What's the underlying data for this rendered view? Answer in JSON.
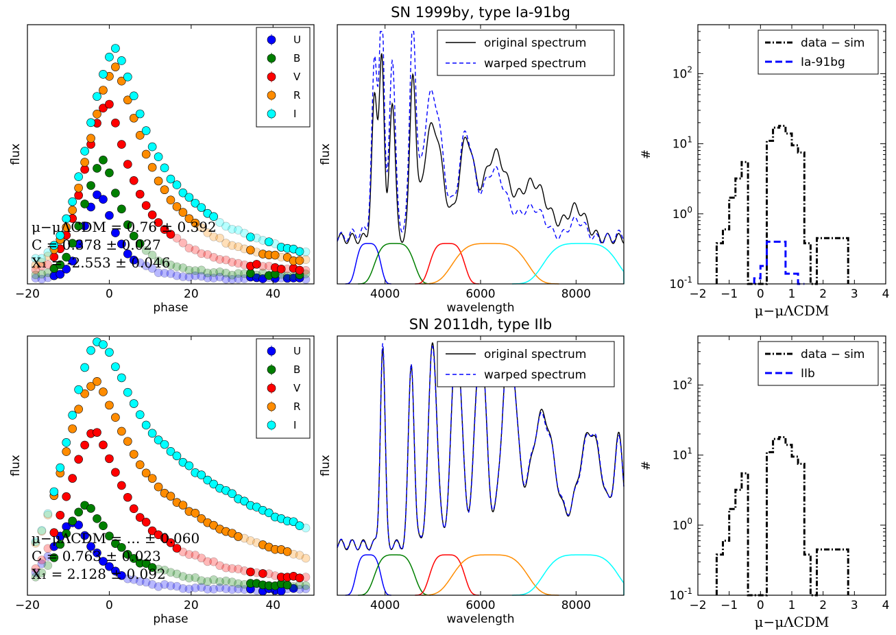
{
  "figure": {
    "rows": [
      {
        "title": "SN 1999by, type Ia-91bg",
        "lightcurve": {
          "type": "scatter",
          "xlabel": "phase",
          "ylabel": "flux",
          "xlim": [
            -20,
            50
          ],
          "xticks": [
            "-20",
            "0",
            "20",
            "40"
          ],
          "legend": [
            "U",
            "B",
            "V",
            "R",
            "I"
          ],
          "colors": [
            "#0000ff",
            "#007f00",
            "#ff0000",
            "#ff8c00",
            "#00ffff"
          ],
          "annotation": [
            "μ−μΛCDM = 0.76 ± 0.392",
            "C = 0.378 ± 0.027",
            "X₁ = -2.553 ± 0.046"
          ],
          "series": [
            {
              "name": "U",
              "peak": 0.34,
              "center": -2,
              "width": 4,
              "decay": 6
            },
            {
              "name": "B",
              "peak": 0.46,
              "center": -1,
              "width": 5,
              "decay": 7
            },
            {
              "name": "V",
              "peak": 0.66,
              "center": 0,
              "width": 6,
              "decay": 11
            },
            {
              "name": "R",
              "peak": 0.79,
              "center": 2,
              "width": 7,
              "decay": 14
            },
            {
              "name": "I",
              "peak": 0.85,
              "center": 2,
              "width": 7,
              "decay": 17
            }
          ]
        },
        "spectrum": {
          "type": "line",
          "xlabel": "wavelength",
          "ylabel": "flux",
          "xlim": [
            3000,
            9000
          ],
          "xticks": [
            "4000",
            "6000",
            "8000"
          ],
          "legend": [
            "original spectrum",
            "warped spectrum"
          ],
          "filters": [
            {
              "center": 3650,
              "width": 300,
              "color": "#0000ff",
              "height": 0.16
            },
            {
              "center": 4200,
              "width": 480,
              "color": "#007f00",
              "height": 0.16
            },
            {
              "center": 5300,
              "width": 420,
              "color": "#ff0000",
              "height": 0.16
            },
            {
              "center": 6200,
              "width": 900,
              "color": "#ff8c00",
              "height": 0.16
            },
            {
              "center": 8100,
              "width": 900,
              "color": "#00ffff",
              "height": 0.16
            }
          ]
        },
        "histogram": {
          "type": "bar",
          "xlabel": "μ−μΛCDM",
          "ylabel": "#",
          "xlim": [
            -2,
            4
          ],
          "ylim": [
            0.1,
            500
          ],
          "yscale": "log",
          "xticks": [
            "−2",
            "−1",
            "0",
            "1",
            "2",
            "3",
            "4"
          ],
          "yticks": [
            [
              "10",
              "2"
            ],
            [
              "10",
              "1"
            ],
            [
              "10",
              "0"
            ],
            [
              "10",
              "-1"
            ]
          ],
          "legend": [
            "data − sim",
            "Ia-91bg"
          ],
          "data_minus_sim": {
            "edges": [
              -1.4,
              -1.2,
              -1.0,
              -0.8,
              -0.6,
              -0.4,
              -0.2,
              0.0,
              0.2,
              0.4,
              0.6,
              0.8,
              1.0,
              1.2,
              1.4,
              1.6,
              1.8,
              2.0,
              2.2,
              2.4,
              2.6,
              2.8
            ],
            "counts": [
              0.38,
              0.6,
              1.7,
              3.2,
              5.5,
              0.1,
              0.1,
              0.1,
              11,
              17,
              18,
              14,
              9.5,
              7.5,
              0.38,
              0.1,
              0.45,
              0.45,
              0.45,
              0.45,
              0.45
            ]
          },
          "type_sim": {
            "edges": [
              -0.2,
              0.0,
              0.2,
              0.4,
              0.6,
              0.8,
              1.0,
              1.2,
              1.4
            ],
            "counts": [
              0.12,
              0.18,
              0.4,
              0.4,
              0.4,
              0.14,
              0.14,
              0.1
            ]
          }
        }
      },
      {
        "title": "SN 2011dh, type IIb",
        "lightcurve": {
          "type": "scatter",
          "xlabel": "phase",
          "ylabel": "flux",
          "xlim": [
            -20,
            50
          ],
          "xticks": [
            "-20",
            "0",
            "20",
            "40"
          ],
          "legend": [
            "U",
            "B",
            "V",
            "R",
            "I"
          ],
          "colors": [
            "#0000ff",
            "#007f00",
            "#ff0000",
            "#ff8c00",
            "#00ffff"
          ],
          "annotation": [
            "μ−μΛCDM = … ± 0.060",
            "C = 0.763 ± 0.023",
            "X₁ = 2.128 ± 0.092"
          ],
          "series": [
            {
              "name": "U",
              "peak": 0.27,
              "center": -8,
              "width": 6,
              "decay": 8
            },
            {
              "name": "B",
              "peak": 0.32,
              "center": -5,
              "width": 6,
              "decay": 12
            },
            {
              "name": "V",
              "peak": 0.6,
              "center": -3,
              "width": 7,
              "decay": 15
            },
            {
              "name": "R",
              "peak": 0.78,
              "center": -3,
              "width": 8,
              "decay": 25
            },
            {
              "name": "I",
              "peak": 0.93,
              "center": -2,
              "width": 8,
              "decay": 35
            }
          ]
        },
        "spectrum": {
          "type": "line",
          "xlabel": "wavelength",
          "ylabel": "flux",
          "xlim": [
            3000,
            9000
          ],
          "xticks": [
            "4000",
            "6000",
            "8000"
          ],
          "legend": [
            "original spectrum",
            "warped spectrum"
          ],
          "filters": [
            {
              "center": 3650,
              "width": 300,
              "color": "#0000ff",
              "height": 0.16
            },
            {
              "center": 4200,
              "width": 480,
              "color": "#007f00",
              "height": 0.16
            },
            {
              "center": 5300,
              "width": 420,
              "color": "#ff0000",
              "height": 0.16
            },
            {
              "center": 6200,
              "width": 900,
              "color": "#ff8c00",
              "height": 0.16
            },
            {
              "center": 8100,
              "width": 900,
              "color": "#00ffff",
              "height": 0.16
            }
          ]
        },
        "histogram": {
          "type": "bar",
          "xlabel": "μ−μΛCDM",
          "ylabel": "#",
          "xlim": [
            -2,
            4
          ],
          "ylim": [
            0.1,
            500
          ],
          "yscale": "log",
          "xticks": [
            "−2",
            "−1",
            "0",
            "1",
            "2",
            "3",
            "4"
          ],
          "yticks": [
            [
              "10",
              "2"
            ],
            [
              "10",
              "1"
            ],
            [
              "10",
              "0"
            ],
            [
              "10",
              "-1"
            ]
          ],
          "legend": [
            "data − sim",
            "IIb"
          ],
          "data_minus_sim": {
            "edges": [
              -1.4,
              -1.2,
              -1.0,
              -0.8,
              -0.6,
              -0.4,
              -0.2,
              0.0,
              0.2,
              0.4,
              0.6,
              0.8,
              1.0,
              1.2,
              1.4,
              1.6,
              1.8,
              2.0,
              2.2,
              2.4,
              2.6,
              2.8
            ],
            "counts": [
              0.38,
              0.6,
              1.7,
              3.2,
              5.5,
              0.1,
              0.1,
              0.1,
              11,
              17,
              18,
              14,
              9.5,
              7.5,
              0.38,
              0.1,
              0.45,
              0.45,
              0.45,
              0.45,
              0.45
            ]
          },
          "type_sim": {
            "edges": [],
            "counts": []
          }
        }
      }
    ]
  },
  "chart_data": [
    {
      "type": "scatter",
      "title": "",
      "xlabel": "phase",
      "ylabel": "flux",
      "xlim": [
        -20,
        50
      ],
      "legend": [
        "U",
        "B",
        "V",
        "R",
        "I"
      ]
    },
    {
      "type": "line",
      "title": "SN 1999by, type Ia-91bg",
      "xlabel": "wavelength",
      "ylabel": "flux",
      "xlim": [
        3000,
        9000
      ],
      "legend": [
        "original spectrum",
        "warped spectrum"
      ]
    },
    {
      "type": "bar",
      "title": "",
      "xlabel": "μ−μΛCDM",
      "ylabel": "#",
      "xlim": [
        -2,
        4
      ],
      "ylim": [
        0.1,
        500
      ],
      "yscale": "log",
      "legend": [
        "data − sim",
        "Ia-91bg"
      ]
    },
    {
      "type": "scatter",
      "title": "",
      "xlabel": "phase",
      "ylabel": "flux",
      "xlim": [
        -20,
        50
      ],
      "legend": [
        "U",
        "B",
        "V",
        "R",
        "I"
      ]
    },
    {
      "type": "line",
      "title": "SN 2011dh, type IIb",
      "xlabel": "wavelength",
      "ylabel": "flux",
      "xlim": [
        3000,
        9000
      ],
      "legend": [
        "original spectrum",
        "warped spectrum"
      ]
    },
    {
      "type": "bar",
      "title": "",
      "xlabel": "μ−μΛCDM",
      "ylabel": "#",
      "xlim": [
        -2,
        4
      ],
      "ylim": [
        0.1,
        500
      ],
      "yscale": "log",
      "legend": [
        "data − sim",
        "IIb"
      ]
    }
  ]
}
